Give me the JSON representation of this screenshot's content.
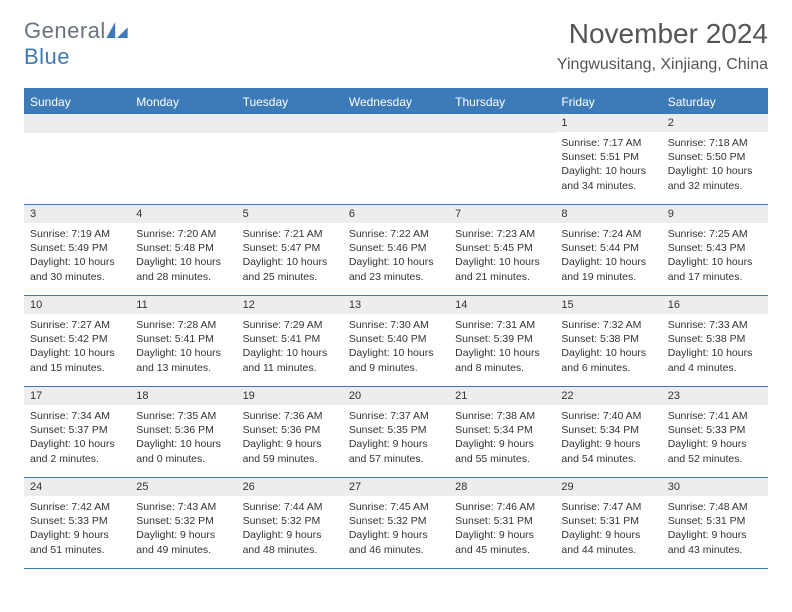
{
  "brand": {
    "part1": "General",
    "part2": "Blue"
  },
  "title": "November 2024",
  "location": "Yingwusitang, Xinjiang, China",
  "colors": {
    "accent": "#3d7bb8",
    "daynum_bg": "#ebedef",
    "text": "#333333",
    "title_text": "#555555",
    "logo_gray": "#6b7280",
    "background": "#ffffff"
  },
  "typography": {
    "title_fontsize": 28,
    "location_fontsize": 16,
    "dayhead_fontsize": 12,
    "cell_fontsize": 10.5
  },
  "day_headers": [
    "Sunday",
    "Monday",
    "Tuesday",
    "Wednesday",
    "Thursday",
    "Friday",
    "Saturday"
  ],
  "weeks": [
    [
      {
        "blank": true
      },
      {
        "blank": true
      },
      {
        "blank": true
      },
      {
        "blank": true
      },
      {
        "blank": true
      },
      {
        "n": "1",
        "sunrise": "Sunrise: 7:17 AM",
        "sunset": "Sunset: 5:51 PM",
        "day1": "Daylight: 10 hours",
        "day2": "and 34 minutes."
      },
      {
        "n": "2",
        "sunrise": "Sunrise: 7:18 AM",
        "sunset": "Sunset: 5:50 PM",
        "day1": "Daylight: 10 hours",
        "day2": "and 32 minutes."
      }
    ],
    [
      {
        "n": "3",
        "sunrise": "Sunrise: 7:19 AM",
        "sunset": "Sunset: 5:49 PM",
        "day1": "Daylight: 10 hours",
        "day2": "and 30 minutes."
      },
      {
        "n": "4",
        "sunrise": "Sunrise: 7:20 AM",
        "sunset": "Sunset: 5:48 PM",
        "day1": "Daylight: 10 hours",
        "day2": "and 28 minutes."
      },
      {
        "n": "5",
        "sunrise": "Sunrise: 7:21 AM",
        "sunset": "Sunset: 5:47 PM",
        "day1": "Daylight: 10 hours",
        "day2": "and 25 minutes."
      },
      {
        "n": "6",
        "sunrise": "Sunrise: 7:22 AM",
        "sunset": "Sunset: 5:46 PM",
        "day1": "Daylight: 10 hours",
        "day2": "and 23 minutes."
      },
      {
        "n": "7",
        "sunrise": "Sunrise: 7:23 AM",
        "sunset": "Sunset: 5:45 PM",
        "day1": "Daylight: 10 hours",
        "day2": "and 21 minutes."
      },
      {
        "n": "8",
        "sunrise": "Sunrise: 7:24 AM",
        "sunset": "Sunset: 5:44 PM",
        "day1": "Daylight: 10 hours",
        "day2": "and 19 minutes."
      },
      {
        "n": "9",
        "sunrise": "Sunrise: 7:25 AM",
        "sunset": "Sunset: 5:43 PM",
        "day1": "Daylight: 10 hours",
        "day2": "and 17 minutes."
      }
    ],
    [
      {
        "n": "10",
        "sunrise": "Sunrise: 7:27 AM",
        "sunset": "Sunset: 5:42 PM",
        "day1": "Daylight: 10 hours",
        "day2": "and 15 minutes."
      },
      {
        "n": "11",
        "sunrise": "Sunrise: 7:28 AM",
        "sunset": "Sunset: 5:41 PM",
        "day1": "Daylight: 10 hours",
        "day2": "and 13 minutes."
      },
      {
        "n": "12",
        "sunrise": "Sunrise: 7:29 AM",
        "sunset": "Sunset: 5:41 PM",
        "day1": "Daylight: 10 hours",
        "day2": "and 11 minutes."
      },
      {
        "n": "13",
        "sunrise": "Sunrise: 7:30 AM",
        "sunset": "Sunset: 5:40 PM",
        "day1": "Daylight: 10 hours",
        "day2": "and 9 minutes."
      },
      {
        "n": "14",
        "sunrise": "Sunrise: 7:31 AM",
        "sunset": "Sunset: 5:39 PM",
        "day1": "Daylight: 10 hours",
        "day2": "and 8 minutes."
      },
      {
        "n": "15",
        "sunrise": "Sunrise: 7:32 AM",
        "sunset": "Sunset: 5:38 PM",
        "day1": "Daylight: 10 hours",
        "day2": "and 6 minutes."
      },
      {
        "n": "16",
        "sunrise": "Sunrise: 7:33 AM",
        "sunset": "Sunset: 5:38 PM",
        "day1": "Daylight: 10 hours",
        "day2": "and 4 minutes."
      }
    ],
    [
      {
        "n": "17",
        "sunrise": "Sunrise: 7:34 AM",
        "sunset": "Sunset: 5:37 PM",
        "day1": "Daylight: 10 hours",
        "day2": "and 2 minutes."
      },
      {
        "n": "18",
        "sunrise": "Sunrise: 7:35 AM",
        "sunset": "Sunset: 5:36 PM",
        "day1": "Daylight: 10 hours",
        "day2": "and 0 minutes."
      },
      {
        "n": "19",
        "sunrise": "Sunrise: 7:36 AM",
        "sunset": "Sunset: 5:36 PM",
        "day1": "Daylight: 9 hours",
        "day2": "and 59 minutes."
      },
      {
        "n": "20",
        "sunrise": "Sunrise: 7:37 AM",
        "sunset": "Sunset: 5:35 PM",
        "day1": "Daylight: 9 hours",
        "day2": "and 57 minutes."
      },
      {
        "n": "21",
        "sunrise": "Sunrise: 7:38 AM",
        "sunset": "Sunset: 5:34 PM",
        "day1": "Daylight: 9 hours",
        "day2": "and 55 minutes."
      },
      {
        "n": "22",
        "sunrise": "Sunrise: 7:40 AM",
        "sunset": "Sunset: 5:34 PM",
        "day1": "Daylight: 9 hours",
        "day2": "and 54 minutes."
      },
      {
        "n": "23",
        "sunrise": "Sunrise: 7:41 AM",
        "sunset": "Sunset: 5:33 PM",
        "day1": "Daylight: 9 hours",
        "day2": "and 52 minutes."
      }
    ],
    [
      {
        "n": "24",
        "sunrise": "Sunrise: 7:42 AM",
        "sunset": "Sunset: 5:33 PM",
        "day1": "Daylight: 9 hours",
        "day2": "and 51 minutes."
      },
      {
        "n": "25",
        "sunrise": "Sunrise: 7:43 AM",
        "sunset": "Sunset: 5:32 PM",
        "day1": "Daylight: 9 hours",
        "day2": "and 49 minutes."
      },
      {
        "n": "26",
        "sunrise": "Sunrise: 7:44 AM",
        "sunset": "Sunset: 5:32 PM",
        "day1": "Daylight: 9 hours",
        "day2": "and 48 minutes."
      },
      {
        "n": "27",
        "sunrise": "Sunrise: 7:45 AM",
        "sunset": "Sunset: 5:32 PM",
        "day1": "Daylight: 9 hours",
        "day2": "and 46 minutes."
      },
      {
        "n": "28",
        "sunrise": "Sunrise: 7:46 AM",
        "sunset": "Sunset: 5:31 PM",
        "day1": "Daylight: 9 hours",
        "day2": "and 45 minutes."
      },
      {
        "n": "29",
        "sunrise": "Sunrise: 7:47 AM",
        "sunset": "Sunset: 5:31 PM",
        "day1": "Daylight: 9 hours",
        "day2": "and 44 minutes."
      },
      {
        "n": "30",
        "sunrise": "Sunrise: 7:48 AM",
        "sunset": "Sunset: 5:31 PM",
        "day1": "Daylight: 9 hours",
        "day2": "and 43 minutes."
      }
    ]
  ]
}
